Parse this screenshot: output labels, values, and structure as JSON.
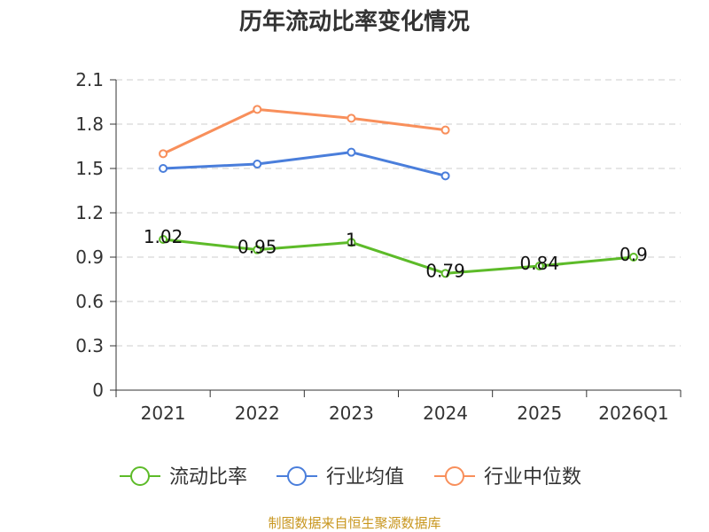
{
  "chart_data": {
    "type": "line",
    "title": "历年流动比率变化情况",
    "categories": [
      "2021",
      "2022",
      "2023",
      "2024",
      "2025",
      "2026Q1"
    ],
    "ylim": [
      0,
      2.1
    ],
    "yticks": [
      "0",
      "0.3",
      "0.6",
      "0.9",
      "1.2",
      "1.5",
      "1.8",
      "2.1"
    ],
    "ytick_values": [
      0,
      0.3,
      0.6,
      0.9,
      1.2,
      1.5,
      1.8,
      2.1
    ],
    "grid": true,
    "legend_position": "bottom",
    "series": [
      {
        "name": "流动比率",
        "color": "#5dbb29",
        "values": [
          1.02,
          0.95,
          1.0,
          0.79,
          0.84,
          0.9
        ],
        "labels": [
          "1.02",
          "0.95",
          "1",
          "0.79",
          "0.84",
          "0.9"
        ],
        "show_labels": true
      },
      {
        "name": "行业均值",
        "color": "#4a7edb",
        "values": [
          1.5,
          1.53,
          1.61,
          1.45,
          null,
          null
        ],
        "show_labels": false
      },
      {
        "name": "行业中位数",
        "color": "#f88f5b",
        "values": [
          1.6,
          1.9,
          1.84,
          1.76,
          null,
          null
        ],
        "show_labels": false
      }
    ]
  },
  "source": "制图数据来自恒生聚源数据库"
}
